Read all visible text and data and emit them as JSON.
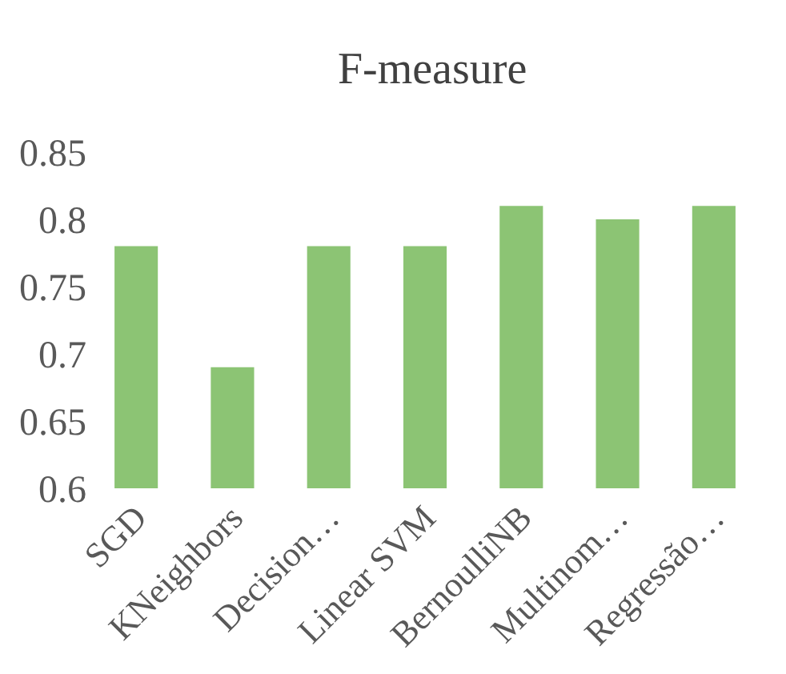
{
  "chart_data": {
    "type": "bar",
    "title": "F-measure",
    "categories": [
      "SGD",
      "KNeighbors",
      "Decision…",
      "Linear SVM",
      "BernoulliNB",
      "Multinom…",
      "Regressão…"
    ],
    "values": [
      0.78,
      0.69,
      0.78,
      0.78,
      0.81,
      0.8,
      0.81
    ],
    "color": "#8cc474",
    "ylim": [
      0.6,
      0.85
    ],
    "yticks": [
      0.6,
      0.65,
      0.7,
      0.75,
      0.8,
      0.85
    ]
  }
}
